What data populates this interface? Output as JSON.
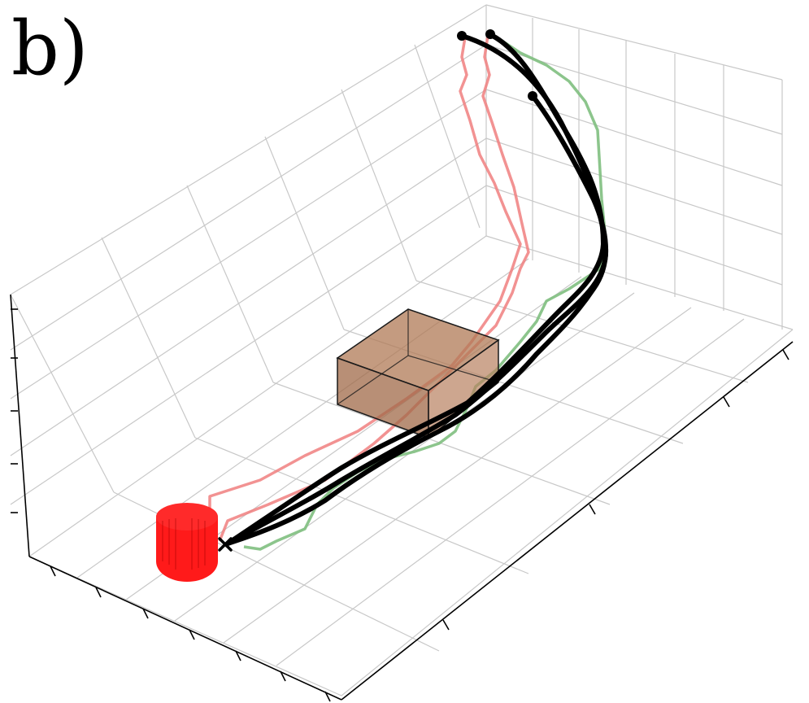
{
  "panel_label": "b)",
  "colors": {
    "grid": "#bfbfbf",
    "pane_edge": "#999999",
    "axis": "#000000",
    "box_fill": "#b07a55",
    "box_edge": "#1a1a1a",
    "target_fill": "#ff1a1a",
    "target_dark": "#c80000",
    "trajectory_main": "#000000",
    "trajectory_red": "#f08080",
    "trajectory_green": "#7fbf7f"
  },
  "scene": {
    "obstacle": "brown-cuboid",
    "target": "red-cylinder",
    "start_marker": "dot",
    "end_marker": "x"
  }
}
